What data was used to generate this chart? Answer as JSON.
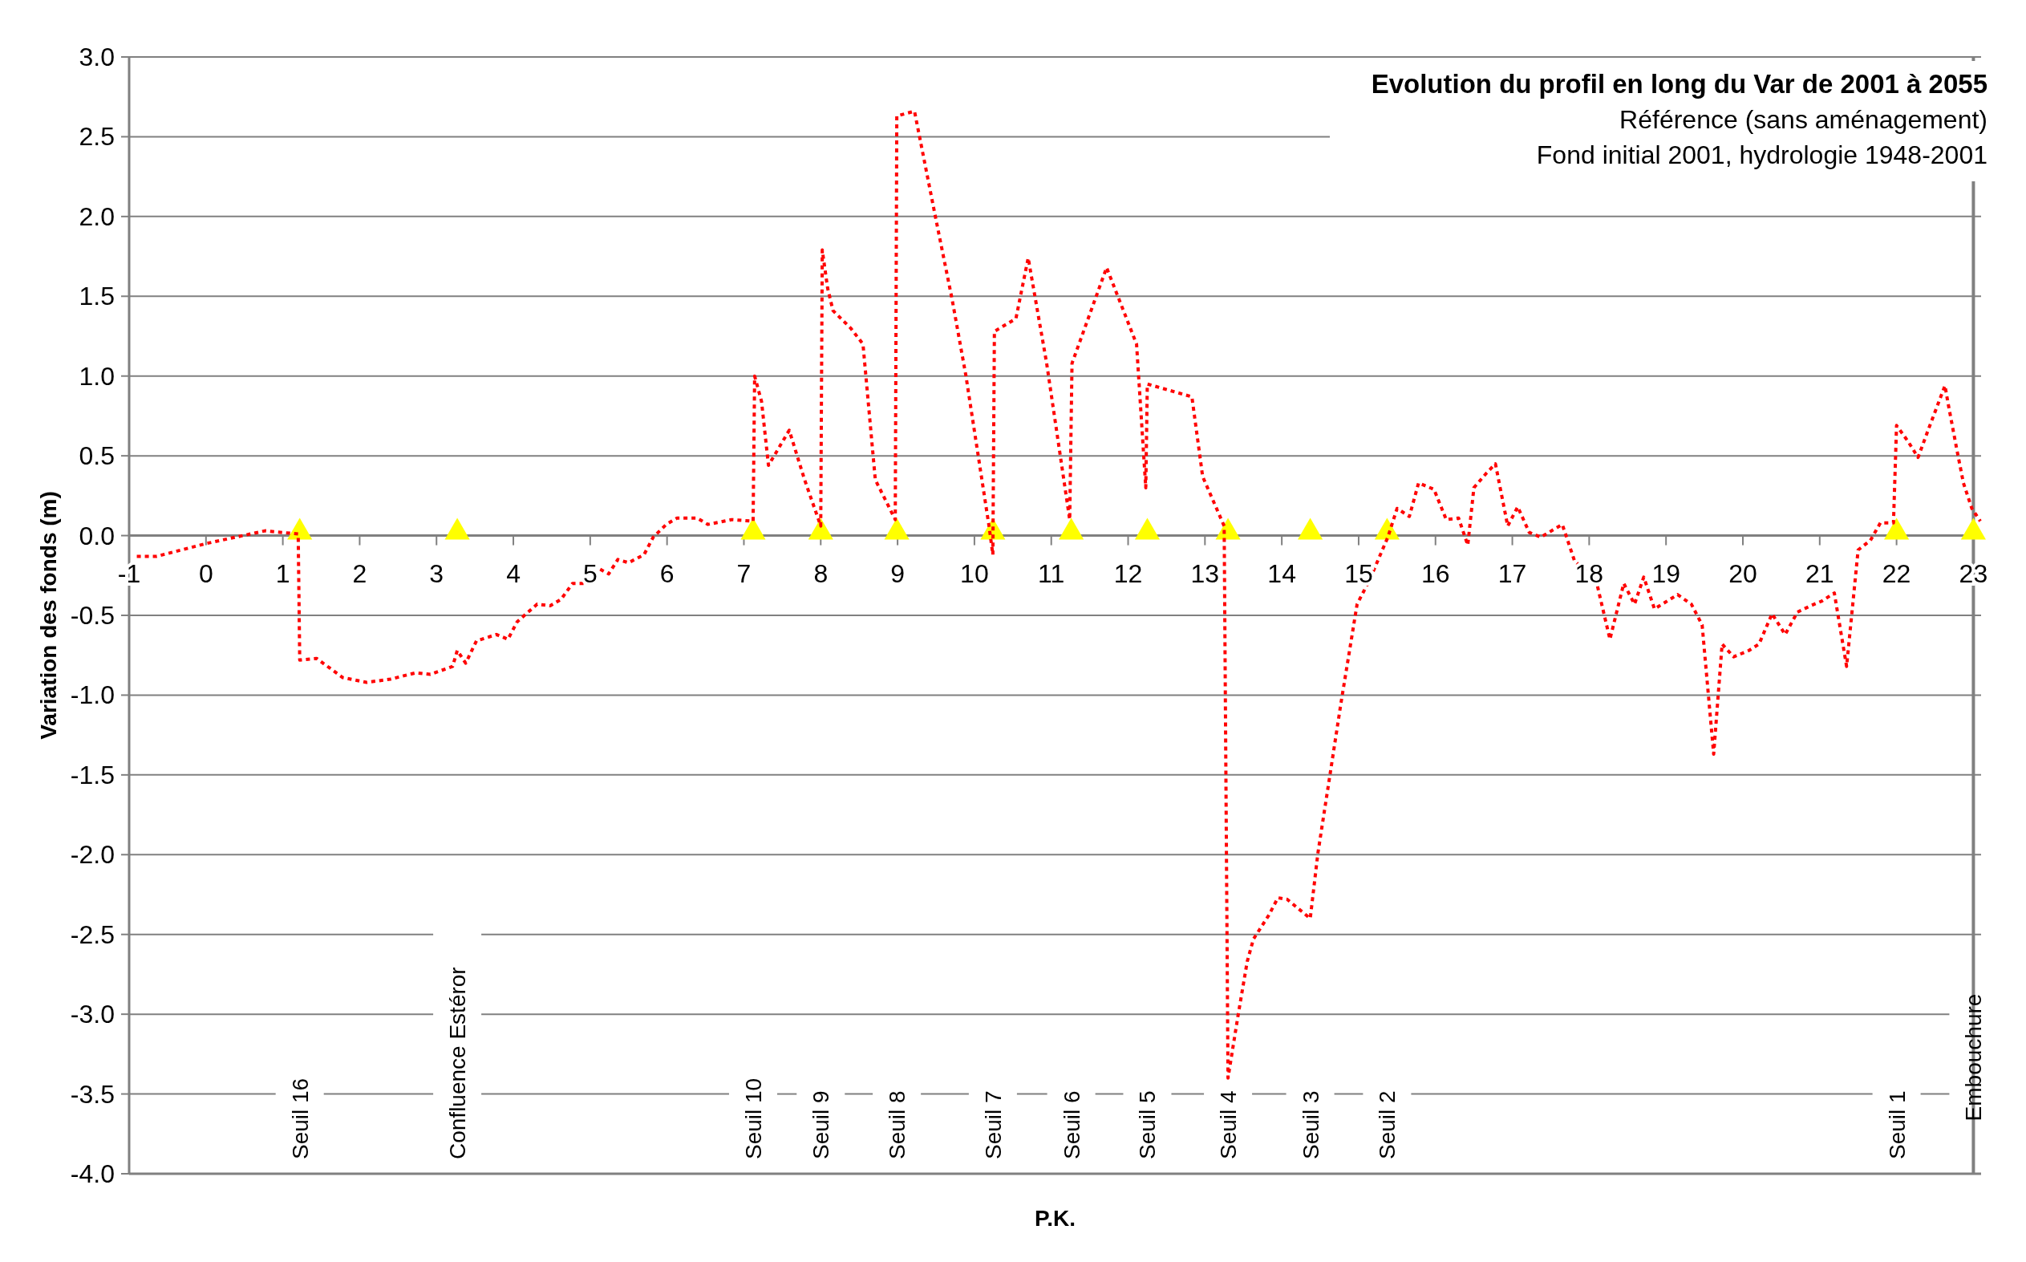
{
  "chart_data": {
    "type": "line",
    "title": "Evolution du profil en long du Var de 2001 à 2055",
    "subtitle": "Référence (sans aménagement)\nFond initial 2001, hydrologie 1948-2001",
    "xlabel": "P.K.",
    "ylabel": "Variation des fonds (m)",
    "xlim": [
      -1,
      23.1
    ],
    "ylim": [
      -4,
      3
    ],
    "xticks": [
      -1,
      0,
      1,
      2,
      3,
      4,
      5,
      6,
      7,
      8,
      9,
      10,
      11,
      12,
      13,
      14,
      15,
      16,
      17,
      18,
      19,
      20,
      21,
      22,
      23
    ],
    "yticks": [
      {
        "value": -4,
        "label": "-4.0"
      },
      {
        "value": -3.5,
        "label": "-3.5"
      },
      {
        "value": -3,
        "label": "-3.0"
      },
      {
        "value": -2.5,
        "label": "-2.5"
      },
      {
        "value": -2,
        "label": "-2.0"
      },
      {
        "value": -1.5,
        "label": "-1.5"
      },
      {
        "value": -1,
        "label": "-1.0"
      },
      {
        "value": -0.5,
        "label": "-0.5"
      },
      {
        "value": 0,
        "label": "0.0"
      },
      {
        "value": 0.5,
        "label": "0.5"
      },
      {
        "value": 1,
        "label": "1.0"
      },
      {
        "value": 1.5,
        "label": "1.5"
      },
      {
        "value": 2,
        "label": "2.0"
      },
      {
        "value": 2.5,
        "label": "2.5"
      },
      {
        "value": 3,
        "label": "3.0"
      }
    ],
    "grid": "y",
    "series": [
      {
        "color": "#ff0000",
        "line_style": "dotted",
        "marker": "none",
        "x": [
          -0.9,
          -0.64,
          0,
          0.48,
          0.77,
          1.2,
          1.22,
          1.44,
          1.78,
          2.09,
          2.4,
          2.73,
          2.92,
          3.21,
          3.27,
          3.38,
          3.52,
          3.78,
          3.93,
          4.05,
          4.31,
          4.48,
          4.62,
          4.77,
          4.93,
          5.05,
          5.24,
          5.36,
          5.5,
          5.7,
          5.82,
          5.99,
          6.13,
          6.39,
          6.53,
          6.84,
          7.12,
          7.14,
          7.23,
          7.32,
          7.59,
          7.79,
          8,
          8.02,
          8.09,
          8.16,
          8.39,
          8.55,
          8.71,
          8.97,
          8.99,
          9.22,
          9.5,
          9.71,
          9.89,
          10.19,
          10.24,
          10.26,
          10.54,
          10.7,
          10.94,
          11.24,
          11.27,
          11.72,
          12.11,
          12.23,
          12.25,
          12.83,
          12.97,
          13.25,
          13.3,
          13.43,
          13.55,
          13.63,
          13.83,
          13.95,
          14.07,
          14.37,
          14.47,
          14.63,
          14.77,
          14.98,
          15.14,
          15.38,
          15.5,
          15.66,
          15.78,
          15.98,
          16.14,
          16.3,
          16.42,
          16.5,
          16.66,
          16.78,
          16.94,
          17.07,
          17.22,
          17.37,
          17.65,
          17.81,
          18.09,
          18.27,
          18.45,
          18.59,
          18.71,
          18.85,
          19.15,
          19.33,
          19.47,
          19.62,
          19.73,
          19.88,
          20.08,
          20.21,
          20.38,
          20.55,
          20.71,
          20.88,
          21.03,
          21.19,
          21.35,
          21.5,
          21.66,
          21.79,
          21.96,
          22,
          22.15,
          22.28,
          22.41,
          22.63,
          22.67,
          22.78,
          22.87,
          22.98,
          23.09
        ],
        "values": [
          -0.13,
          -0.13,
          -0.05,
          0,
          0.03,
          0.01,
          -0.78,
          -0.77,
          -0.89,
          -0.92,
          -0.9,
          -0.86,
          -0.87,
          -0.82,
          -0.72,
          -0.8,
          -0.66,
          -0.62,
          -0.65,
          -0.54,
          -0.43,
          -0.44,
          -0.4,
          -0.3,
          -0.3,
          -0.19,
          -0.24,
          -0.15,
          -0.17,
          -0.12,
          -0.01,
          0.07,
          0.11,
          0.11,
          0.07,
          0.1,
          0.09,
          1,
          0.84,
          0.44,
          0.66,
          0.35,
          0.06,
          1.79,
          1.55,
          1.41,
          1.3,
          1.2,
          0.35,
          0.1,
          2.63,
          2.66,
          1.98,
          1.48,
          1,
          0.06,
          -0.12,
          1.28,
          1.36,
          1.74,
          1.08,
          0.1,
          1.08,
          1.68,
          1.2,
          0.3,
          0.95,
          0.87,
          0.37,
          0.06,
          -3.4,
          -3.01,
          -2.67,
          -2.53,
          -2.38,
          -2.27,
          -2.28,
          -2.4,
          -1.99,
          -1.49,
          -1.05,
          -0.43,
          -0.28,
          -0.01,
          0.17,
          0.12,
          0.33,
          0.29,
          0.1,
          0.11,
          -0.06,
          0.3,
          0.39,
          0.45,
          0.06,
          0.18,
          0.02,
          -0.01,
          0.07,
          -0.16,
          -0.28,
          -0.65,
          -0.3,
          -0.43,
          -0.26,
          -0.46,
          -0.37,
          -0.43,
          -0.56,
          -1.37,
          -0.68,
          -0.76,
          -0.72,
          -0.68,
          -0.49,
          -0.62,
          -0.48,
          -0.44,
          -0.41,
          -0.36,
          -0.82,
          -0.09,
          -0.03,
          0.08,
          0.08,
          0.69,
          0.59,
          0.49,
          0.66,
          0.94,
          0.83,
          0.55,
          0.33,
          0.17,
          0.09
        ]
      },
      {
        "type": "scatter",
        "color": "#ffff00",
        "marker": "triangle",
        "x": [
          1.22,
          3.27,
          7.12,
          8,
          8.99,
          10.24,
          11.26,
          12.25,
          13.3,
          14.37,
          15.37,
          22,
          23
        ],
        "values": [
          0,
          0,
          0,
          0,
          0,
          0,
          0,
          0,
          0,
          0,
          0,
          0,
          0
        ]
      }
    ],
    "ref_lines": [
      {
        "axis": "x",
        "value": 23,
        "label": "Embouchure",
        "color": "#808080"
      }
    ],
    "annotations": [
      "Seuil 16",
      "Confluence Estéror",
      "Seuil 10",
      "Seuil 9",
      "Seuil 8",
      "Seuil 7",
      "Seuil 6",
      "Seuil 5",
      "Seuil 4",
      "Seuil 3",
      "Seuil 2",
      "Seuil 1"
    ]
  }
}
